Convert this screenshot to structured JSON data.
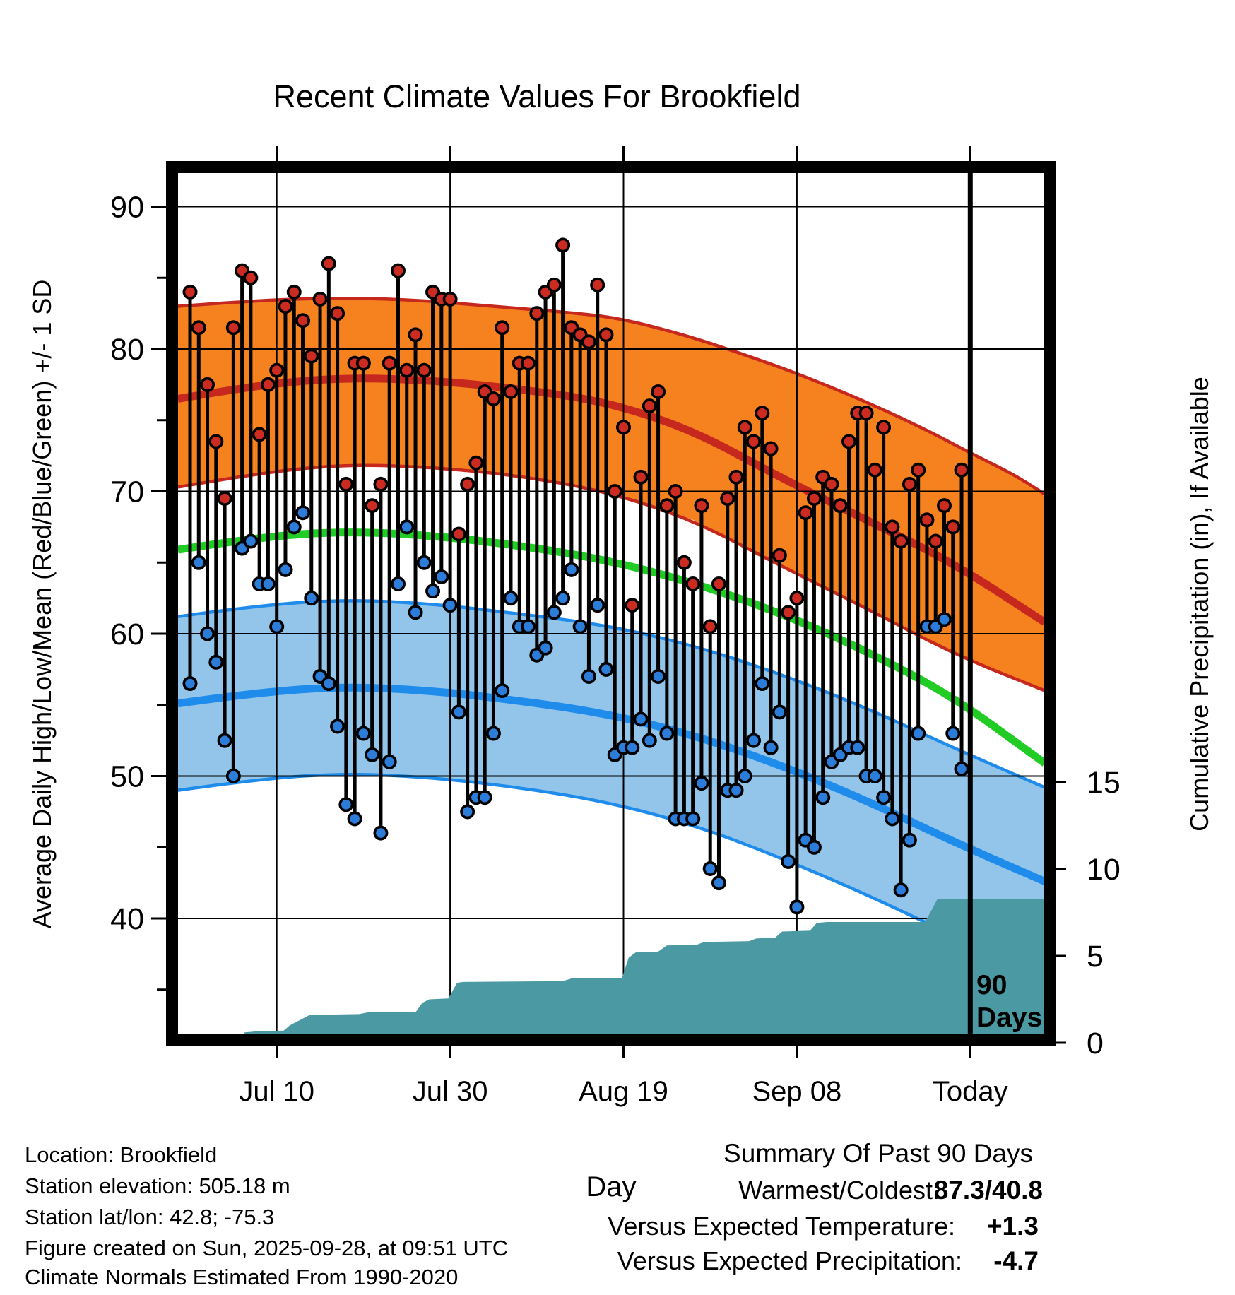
{
  "title": "Recent Climate Values For Brookfield",
  "y_left_axis": {
    "label": "Average Daily High/Low/Mean (Red/Blue/Green) +/- 1 SD",
    "major_ticks": [
      90,
      80,
      70,
      60,
      50,
      40
    ],
    "minor_ticks": [
      85,
      75,
      65,
      55,
      45,
      35
    ]
  },
  "y_right_axis": {
    "label": "Cumulative Precipitation (in), If Available",
    "major_ticks": [
      15,
      10,
      5,
      0
    ]
  },
  "x_axis": {
    "label": "Day",
    "ticks": [
      {
        "label": "Jul 10",
        "day": 10
      },
      {
        "label": "Jul 30",
        "day": 30
      },
      {
        "label": "Aug 19",
        "day": 50
      },
      {
        "label": "Sep 08",
        "day": 70
      },
      {
        "label": "Today",
        "day": 90
      }
    ]
  },
  "annotation": {
    "line1": "90",
    "line2": "Days"
  },
  "footer_lines": [
    "Location: Brookfield",
    "Station elevation: 505.18 m",
    "Station lat/lon: 42.8; -75.3",
    "Figure created on Sun, 2025-09-28, at 09:51 UTC",
    "Climate Normals Estimated From 1990-2020"
  ],
  "summary": {
    "title": "Summary Of Past 90 Days",
    "rows": [
      {
        "label": "Warmest/Coldest:",
        "value": "87.3/40.8",
        "value_color": "#000000"
      },
      {
        "label": "Versus Expected Temperature:",
        "value": "+1.3",
        "value_color": "#c9231c"
      },
      {
        "label": "Versus Expected Precipitation:",
        "value": "-4.7",
        "value_color": "#b0591e"
      }
    ]
  },
  "colors": {
    "orange_band_fill": "#f5821f",
    "red_line": "#c6281d",
    "red_dot": "#cb2b20",
    "blue_band_fill": "#92c5e9",
    "blue_line": "#1f8ceb",
    "blue_dot": "#2b7dd9",
    "green_line": "#21cc24",
    "precip_fill": "#4a99a3",
    "stem": "#000000"
  },
  "chart_data": {
    "type": "composite",
    "description": "Daily high/low temperature stems with climate normal bands (mean +/- 1 SD) and cumulative precipitation area",
    "x_unit": "days since Jun 30 (day 0); Today = day 90 (Sep 28)",
    "temp_axis_range_f": [
      32,
      92
    ],
    "precip_axis_range_in": [
      0,
      16
    ],
    "daily": {
      "start_date": "Jun 30",
      "end_date": "Sep 27",
      "high": [
        84,
        81.5,
        77.5,
        73.5,
        69.5,
        81.5,
        85.5,
        85,
        74,
        77.5,
        78.5,
        83,
        84,
        82,
        79.5,
        83.5,
        86,
        82.5,
        70.5,
        79,
        79,
        69,
        70.5,
        79,
        85.5,
        78.5,
        81,
        78.5,
        84,
        83.5,
        83.5,
        67,
        70.5,
        72,
        77,
        76.5,
        81.5,
        77,
        79,
        79,
        82.5,
        84,
        84.5,
        87.3,
        81.5,
        81,
        80.5,
        84.5,
        81,
        70,
        74.5,
        62,
        71,
        76,
        77,
        69,
        70,
        65,
        63.5,
        69,
        60.5,
        63.5,
        69.5,
        71,
        74.5,
        73.5,
        75.5,
        73,
        65.5,
        61.5,
        62.5,
        68.5,
        69.5,
        71,
        70.5,
        69,
        73.5,
        75.5,
        75.5,
        71.5,
        74.5,
        67.5,
        66.5,
        70.5,
        71.5,
        68,
        66.5,
        69,
        67.5,
        71.5
      ],
      "low": [
        56.5,
        65,
        60,
        58,
        52.5,
        50,
        66,
        66.5,
        63.5,
        63.5,
        60.5,
        64.5,
        67.5,
        68.5,
        62.5,
        57,
        56.5,
        53.5,
        48,
        47,
        53,
        51.5,
        46,
        51,
        63.5,
        67.5,
        61.5,
        65,
        63,
        64,
        62,
        54.5,
        47.5,
        48.5,
        48.5,
        53,
        56,
        62.5,
        60.5,
        60.5,
        58.5,
        59,
        61.5,
        62.5,
        64.5,
        60.5,
        57,
        62,
        57.5,
        51.5,
        52,
        52,
        54,
        52.5,
        57,
        53,
        47,
        47,
        47,
        49.5,
        43.5,
        42.5,
        49,
        49,
        50,
        52.5,
        56.5,
        52,
        54.5,
        44,
        40.8,
        45.5,
        45,
        48.5,
        51,
        51.5,
        52,
        52,
        50,
        50,
        48.5,
        47,
        42,
        45.5,
        53,
        60.5,
        60.5,
        61,
        53,
        50.5
      ]
    },
    "normals": {
      "high_plus_sd": [
        [
          -1.4,
          83.0
        ],
        [
          5,
          83.3
        ],
        [
          15,
          83.6
        ],
        [
          25,
          83.5
        ],
        [
          35,
          83.0
        ],
        [
          45,
          82.5
        ],
        [
          50,
          82.1
        ],
        [
          57,
          81.0
        ],
        [
          63,
          79.8
        ],
        [
          70,
          78.3
        ],
        [
          78,
          76.3
        ],
        [
          85,
          74.3
        ],
        [
          90,
          72.7
        ],
        [
          95,
          71.2
        ],
        [
          98.6,
          69.8
        ]
      ],
      "high_mean": [
        [
          -1.4,
          76.5
        ],
        [
          8,
          77.5
        ],
        [
          18,
          78.0
        ],
        [
          28,
          77.8
        ],
        [
          38,
          77.2
        ],
        [
          48,
          76.3
        ],
        [
          58,
          74.3
        ],
        [
          68,
          71.0
        ],
        [
          78,
          68.0
        ],
        [
          88,
          65.0
        ],
        [
          98.6,
          60.8
        ]
      ],
      "high_minus_sd": [
        [
          -1.4,
          70.3
        ],
        [
          8,
          71.3
        ],
        [
          18,
          71.9
        ],
        [
          28,
          71.7
        ],
        [
          38,
          71.1
        ],
        [
          48,
          70.0
        ],
        [
          58,
          68.0
        ],
        [
          68,
          64.8
        ],
        [
          78,
          61.8
        ],
        [
          88,
          58.6
        ],
        [
          98.6,
          56.0
        ]
      ],
      "mean": [
        [
          -1.4,
          65.9
        ],
        [
          8,
          66.8
        ],
        [
          18,
          67.2
        ],
        [
          28,
          66.9
        ],
        [
          38,
          66.2
        ],
        [
          48,
          65.2
        ],
        [
          58,
          63.6
        ],
        [
          68,
          61.5
        ],
        [
          78,
          58.8
        ],
        [
          88,
          55.6
        ],
        [
          98.6,
          50.9
        ]
      ],
      "low_plus_sd": [
        [
          -1.4,
          61.2
        ],
        [
          8,
          62.0
        ],
        [
          18,
          62.4
        ],
        [
          28,
          62.1
        ],
        [
          38,
          61.4
        ],
        [
          48,
          60.6
        ],
        [
          58,
          59.2
        ],
        [
          68,
          57.2
        ],
        [
          78,
          54.8
        ],
        [
          88,
          52.0
        ],
        [
          98.6,
          49.2
        ]
      ],
      "low_mean": [
        [
          -1.4,
          55.1
        ],
        [
          8,
          55.9
        ],
        [
          18,
          56.3
        ],
        [
          28,
          56.0
        ],
        [
          38,
          55.3
        ],
        [
          48,
          54.4
        ],
        [
          58,
          52.9
        ],
        [
          68,
          50.8
        ],
        [
          78,
          48.3
        ],
        [
          88,
          45.4
        ],
        [
          98.6,
          42.6
        ]
      ],
      "low_minus_sd": [
        [
          -1.4,
          49.0
        ],
        [
          8,
          49.8
        ],
        [
          18,
          50.2
        ],
        [
          28,
          49.9
        ],
        [
          38,
          49.2
        ],
        [
          48,
          48.2
        ],
        [
          58,
          46.6
        ],
        [
          68,
          44.3
        ],
        [
          78,
          41.7
        ],
        [
          88,
          38.8
        ],
        [
          98.6,
          36.0
        ]
      ]
    },
    "cumulative_precip_in": [
      [
        -1.4,
        0
      ],
      [
        6,
        0
      ],
      [
        6.3,
        0.6
      ],
      [
        7.5,
        0.65
      ],
      [
        10.8,
        0.7
      ],
      [
        11.5,
        1.0
      ],
      [
        13.8,
        1.6
      ],
      [
        19.5,
        1.65
      ],
      [
        20.5,
        1.75
      ],
      [
        26,
        1.75
      ],
      [
        26.8,
        2.3
      ],
      [
        27.6,
        2.5
      ],
      [
        29.8,
        2.55
      ],
      [
        30.8,
        3.45
      ],
      [
        31.5,
        3.5
      ],
      [
        43,
        3.55
      ],
      [
        44,
        3.7
      ],
      [
        49.8,
        3.7
      ],
      [
        50.6,
        4.9
      ],
      [
        51.4,
        5.2
      ],
      [
        54,
        5.25
      ],
      [
        55,
        5.6
      ],
      [
        58.5,
        5.65
      ],
      [
        59.3,
        5.8
      ],
      [
        64.5,
        5.85
      ],
      [
        65.3,
        6.0
      ],
      [
        67.5,
        6.05
      ],
      [
        68.3,
        6.4
      ],
      [
        71.5,
        6.45
      ],
      [
        72.3,
        6.9
      ],
      [
        73.5,
        6.95
      ],
      [
        84.8,
        6.95
      ],
      [
        86.2,
        8.25
      ],
      [
        98.6,
        8.25
      ]
    ],
    "today_day_index": 90,
    "grid": "major gridlines on",
    "legend_position": "none"
  }
}
